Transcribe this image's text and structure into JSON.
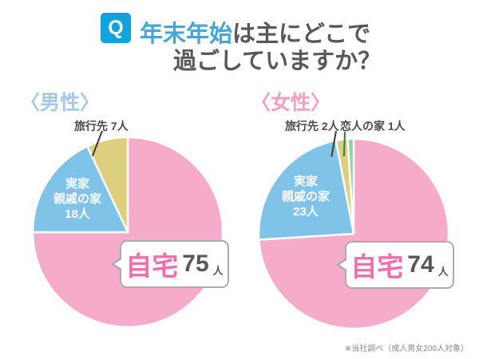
{
  "header": {
    "badge": "Q",
    "title_highlight": "年末年始",
    "title_rest": "は主にどこで",
    "title_line2": "過ごしていますか？"
  },
  "charts": [
    {
      "heading": "〈男性〉",
      "top_labels": {
        "travel": "旅行先 7人"
      },
      "slice_label_lines": [
        "実家",
        "親戚の家",
        "18人"
      ],
      "callout": {
        "label": "自宅",
        "value": "75",
        "unit": "人"
      }
    },
    {
      "heading": "〈女性〉",
      "top_labels": {
        "travel": "旅行先 2人",
        "lover": "恋人の家 1人"
      },
      "slice_label_lines": [
        "実家",
        "親戚の家",
        "23人"
      ],
      "callout": {
        "label": "自宅",
        "value": "74",
        "unit": "人"
      }
    }
  ],
  "chart_data": [
    {
      "type": "pie",
      "group": "男性",
      "start": "top",
      "direction": "clockwise",
      "total": 100,
      "slices": [
        {
          "key": "home",
          "label": "自宅",
          "value": 75,
          "unit": "人",
          "color": "#F7ABCB"
        },
        {
          "key": "family",
          "label": "実家・親戚の家",
          "value": 18,
          "unit": "人",
          "color": "#7FC4E8"
        },
        {
          "key": "travel",
          "label": "旅行先",
          "value": 7,
          "unit": "人",
          "color": "#DCD07E"
        }
      ]
    },
    {
      "type": "pie",
      "group": "女性",
      "start": "top",
      "direction": "clockwise",
      "total": 100,
      "slices": [
        {
          "key": "home",
          "label": "自宅",
          "value": 74,
          "unit": "人",
          "color": "#F7ABCB"
        },
        {
          "key": "family",
          "label": "実家・親戚の家",
          "value": 23,
          "unit": "人",
          "color": "#7FC4E8"
        },
        {
          "key": "travel",
          "label": "旅行先",
          "value": 2,
          "unit": "人",
          "color": "#DCD07E"
        },
        {
          "key": "lover",
          "label": "恋人の家",
          "value": 1,
          "unit": "人",
          "color": "#8FCFA0"
        }
      ]
    }
  ],
  "colors": {
    "badge_blue": "#10A4DC",
    "title_highlight_blue": "#45A5D8",
    "title_gray": "#595757",
    "heading_men_blue": "#A5C8E6",
    "heading_women_pink": "#F39EC3",
    "callout_home_pink": "#F06FA8",
    "leader_black": "#3a3a3a",
    "leader_green": "#2E7B4F"
  },
  "footnote": "※当社調べ（成人男女200人対象）"
}
